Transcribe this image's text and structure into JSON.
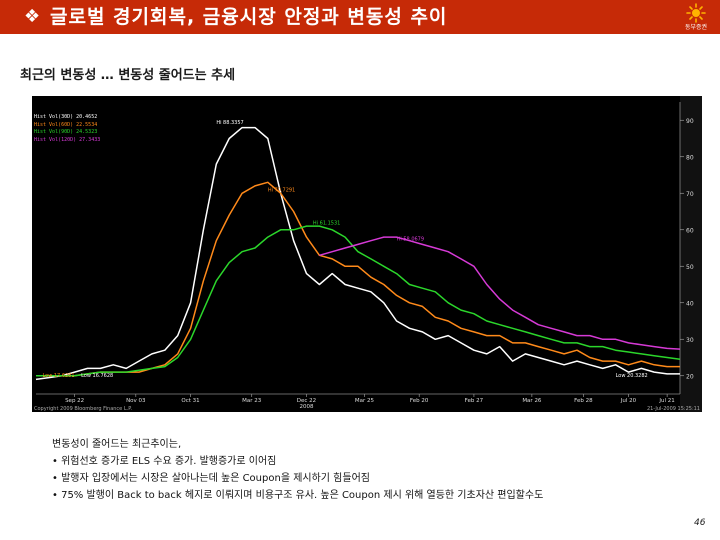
{
  "header": {
    "bullet": "❖",
    "title": "글로벌 경기회복, 금융시장 안정과 변동성 추이",
    "logo_text": "동부증권",
    "bg_color": "#c62a07"
  },
  "subtitle": "최근의 변동성 … 변동성 줄어드는 추세",
  "chart_data": {
    "type": "line",
    "background": "#000000",
    "grid": false,
    "legend_position": "top-left",
    "y_axis_side": "right",
    "ylim": [
      15,
      95
    ],
    "y_ticks": [
      20,
      30,
      40,
      50,
      60,
      70,
      80,
      90
    ],
    "x": [
      0,
      2,
      4,
      6,
      8,
      10,
      12,
      14,
      16,
      18,
      20,
      22,
      24,
      26,
      28,
      30,
      32,
      34,
      36,
      38,
      40,
      42,
      44,
      46,
      48,
      50,
      52,
      54,
      56,
      58,
      60,
      62,
      64,
      66,
      68,
      70,
      72,
      74,
      76,
      78,
      80,
      82,
      84,
      86,
      88,
      90,
      92,
      94,
      96,
      98,
      100
    ],
    "x_tick_labels": [
      {
        "label": "Sep 22",
        "pos": 6
      },
      {
        "label": "Nov 03",
        "pos": 15.5
      },
      {
        "label": "Oct 31",
        "pos": 24
      },
      {
        "label": "Mar 23",
        "pos": 33.5
      },
      {
        "label": "Dec 22",
        "pos": 42
      },
      {
        "label": "Mar 25",
        "pos": 51
      },
      {
        "label": "Feb 20",
        "pos": 59.5
      },
      {
        "label": "Feb 27",
        "pos": 68
      },
      {
        "label": "Mar 26",
        "pos": 77
      },
      {
        "label": "Feb 28",
        "pos": 85
      },
      {
        "label": "Jul 20",
        "pos": 92
      },
      {
        "label": "Jul 21",
        "pos": 98
      }
    ],
    "x_year_label": {
      "label": "2008",
      "pos": 42
    },
    "series": [
      {
        "name": "Hist Vol(30D)",
        "legend_value": "20.4652",
        "color": "#ffffff",
        "values": [
          19,
          19.5,
          20,
          21,
          22,
          22,
          23,
          22,
          24,
          26,
          27,
          31,
          40,
          60,
          78,
          85,
          88,
          88,
          85,
          70,
          57,
          48,
          45,
          48,
          45,
          44,
          43,
          40,
          35,
          33,
          32,
          30,
          31,
          29,
          27,
          26,
          28,
          24,
          26,
          25,
          24,
          23,
          24,
          23,
          22,
          23,
          21,
          22,
          21,
          20.5,
          20.5
        ]
      },
      {
        "name": "Hist Vol(60D)",
        "legend_value": "22.5534",
        "color": "#ff8a1a",
        "values": [
          20,
          20,
          20,
          20,
          20.5,
          21,
          21,
          21,
          21,
          22,
          23,
          26,
          33,
          46,
          57,
          64,
          70,
          72,
          73,
          70,
          65,
          58,
          53,
          52,
          50,
          50,
          47,
          45,
          42,
          40,
          39,
          36,
          35,
          33,
          32,
          31,
          31,
          29,
          29,
          28,
          27,
          26,
          27,
          25,
          24,
          24,
          23,
          24,
          23,
          22.5,
          22.5
        ]
      },
      {
        "name": "Hist Vol(90D)",
        "legend_value": "24.5323",
        "color": "#2bd62b",
        "values": [
          20,
          20,
          20,
          20,
          20.5,
          21,
          21,
          21,
          21.5,
          22,
          22.5,
          25,
          30,
          38,
          46,
          51,
          54,
          55,
          58,
          60,
          60,
          61,
          61,
          60,
          58,
          54,
          52,
          50,
          48,
          45,
          44,
          43,
          40,
          38,
          37,
          35,
          34,
          33,
          32,
          31,
          30,
          29,
          29,
          28,
          28,
          27,
          26.5,
          26,
          25.5,
          25,
          24.5
        ]
      },
      {
        "name": "Hist Vol(120D)",
        "legend_value": "27.3433",
        "color": "#d63ad6",
        "values": [
          null,
          null,
          null,
          null,
          null,
          null,
          null,
          null,
          null,
          null,
          null,
          null,
          null,
          null,
          null,
          null,
          null,
          null,
          null,
          null,
          null,
          null,
          53,
          54,
          55,
          56,
          57,
          58,
          58,
          57,
          56,
          55,
          54,
          52,
          50,
          45,
          41,
          38,
          36,
          34,
          33,
          32,
          31,
          31,
          30,
          30,
          29,
          28.5,
          28,
          27.5,
          27.3
        ]
      }
    ],
    "annotations": [
      {
        "text": "Hi 88.3357",
        "x": 28,
        "y": 89,
        "color": "#ffffff"
      },
      {
        "text": "Hi 70.7291",
        "x": 36,
        "y": 70.5,
        "color": "#ff8a1a"
      },
      {
        "text": "Hi 61.1531",
        "x": 43,
        "y": 61.5,
        "color": "#2bd62b"
      },
      {
        "text": "Hi 58.0679",
        "x": 56,
        "y": 57,
        "color": "#d63ad6"
      },
      {
        "text": "Low 17.6281",
        "x": 1,
        "y": 19.6,
        "color": "#ff8a1a"
      },
      {
        "text": "Low 16.7628",
        "x": 7,
        "y": 19.6,
        "color": "#ffffff"
      },
      {
        "text": "Low 20.3282",
        "x": 90,
        "y": 19.6,
        "color": "#ffffff"
      }
    ],
    "footer_left": "Copyright 2009 Bloomberg Finance L.P.",
    "footer_right": "21-Jul-2009 15:25:11"
  },
  "notes": [
    "변동성이 줄어드는 최근추이는,",
    "• 위험선호 증가로 ELS 수요 증가. 발행증가로 이어짐",
    "• 발행자 입장에서는 시장은 살아나는데 높은 Coupon을 제시하기 힘들어짐",
    "• 75% 발행이 Back to back 헤지로 이뤄지며 비용구조 유사. 높은 Coupon 제시 위해 열등한 기초자산 편입할수도"
  ],
  "page_number": "46"
}
